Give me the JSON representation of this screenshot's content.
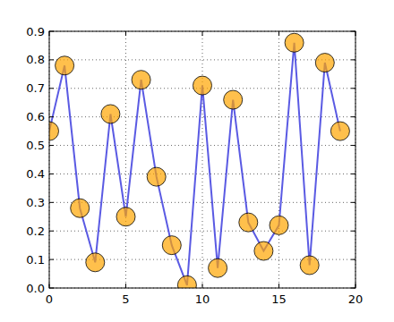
{
  "chart_data": {
    "type": "line",
    "x": [
      0,
      1,
      2,
      3,
      4,
      5,
      6,
      7,
      8,
      9,
      10,
      11,
      12,
      13,
      14,
      15,
      16,
      17,
      18,
      19
    ],
    "series": [
      {
        "color": "#4848e0",
        "marker": "circle",
        "line_style": "solid",
        "values": [
          0.55,
          0.78,
          0.28,
          0.09,
          0.61,
          0.25,
          0.73,
          0.39,
          0.15,
          0.01,
          0.71,
          0.07,
          0.66,
          0.23,
          0.13,
          0.22,
          0.86,
          0.08,
          0.79,
          0.55
        ]
      }
    ],
    "xlim": [
      0,
      20
    ],
    "xticks": [
      0,
      5,
      10,
      15,
      20
    ],
    "ylim": [
      0,
      0.9
    ],
    "yticks": [
      {
        "value": 0,
        "label": "0.0"
      },
      0.1,
      0.2,
      0.3,
      0.4,
      0.5,
      0.6,
      0.7,
      0.8,
      0.9
    ],
    "grid": true
  }
}
